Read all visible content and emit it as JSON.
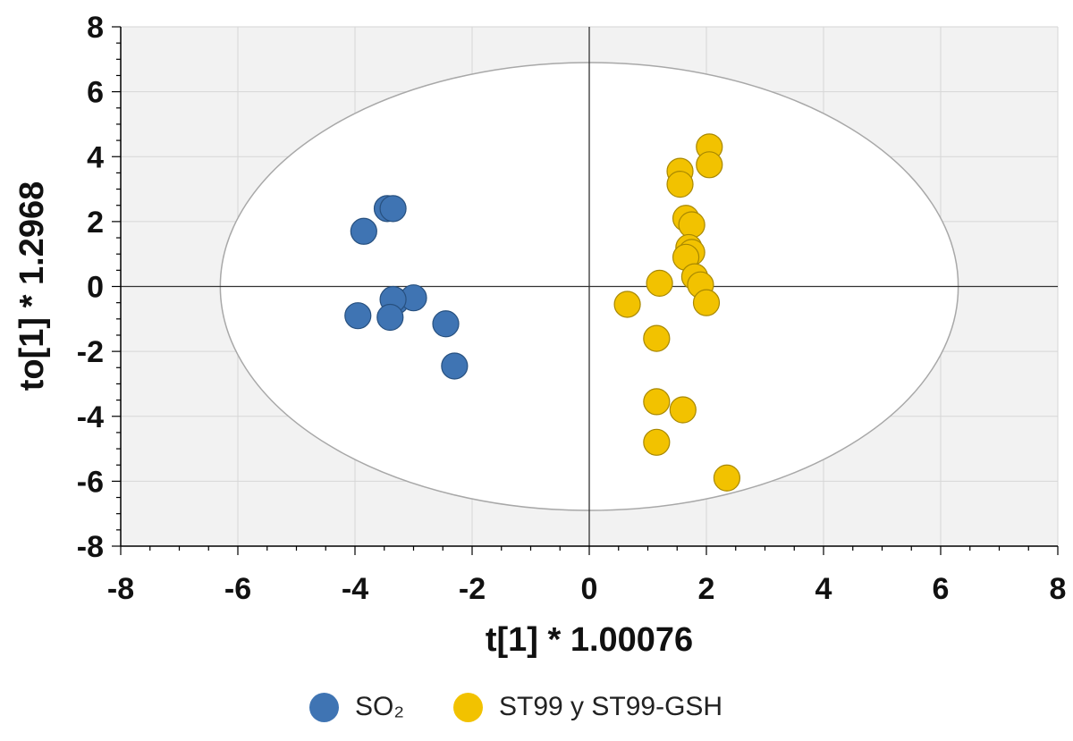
{
  "chart_data": {
    "type": "scatter",
    "title": "",
    "xlabel": "t[1] * 1.00076",
    "ylabel": "to[1] * 1.2968",
    "xlim": [
      -8,
      8
    ],
    "ylim": [
      -8,
      8
    ],
    "xticks": [
      -8,
      -6,
      -4,
      -2,
      0,
      2,
      4,
      6,
      8
    ],
    "yticks": [
      -8,
      -6,
      -4,
      -2,
      0,
      2,
      4,
      6,
      8
    ],
    "grid": true,
    "ellipse": {
      "center": [
        0,
        0
      ],
      "rx": 6.3,
      "ry": 6.9
    },
    "legend_position": "bottom",
    "series": [
      {
        "name": "SO₂",
        "color": "#3f74b3",
        "points": [
          [
            -3.45,
            2.4
          ],
          [
            -3.35,
            2.4
          ],
          [
            -3.85,
            1.7
          ],
          [
            -3.3,
            -0.45
          ],
          [
            -3.0,
            -0.35
          ],
          [
            -3.35,
            -0.4
          ],
          [
            -3.95,
            -0.9
          ],
          [
            -3.4,
            -0.95
          ],
          [
            -2.45,
            -1.15
          ],
          [
            -2.3,
            -2.45
          ]
        ]
      },
      {
        "name": "ST99 y ST99-GSH",
        "color": "#f2c200",
        "points": [
          [
            2.05,
            4.3
          ],
          [
            2.05,
            3.75
          ],
          [
            1.55,
            3.55
          ],
          [
            1.55,
            3.15
          ],
          [
            1.65,
            2.1
          ],
          [
            1.75,
            1.9
          ],
          [
            1.7,
            1.2
          ],
          [
            1.75,
            1.05
          ],
          [
            1.65,
            0.9
          ],
          [
            1.8,
            0.3
          ],
          [
            1.9,
            0.05
          ],
          [
            2.0,
            -0.5
          ],
          [
            1.2,
            0.1
          ],
          [
            0.65,
            -0.55
          ],
          [
            1.15,
            -1.6
          ],
          [
            1.15,
            -3.55
          ],
          [
            1.6,
            -3.8
          ],
          [
            1.15,
            -4.8
          ],
          [
            2.35,
            -5.9
          ]
        ]
      }
    ]
  },
  "colors": {
    "plot_background": "#f2f2f2",
    "ellipse_fill": "#ffffff",
    "grid": "#d6d6d6",
    "axis": "#000000"
  }
}
